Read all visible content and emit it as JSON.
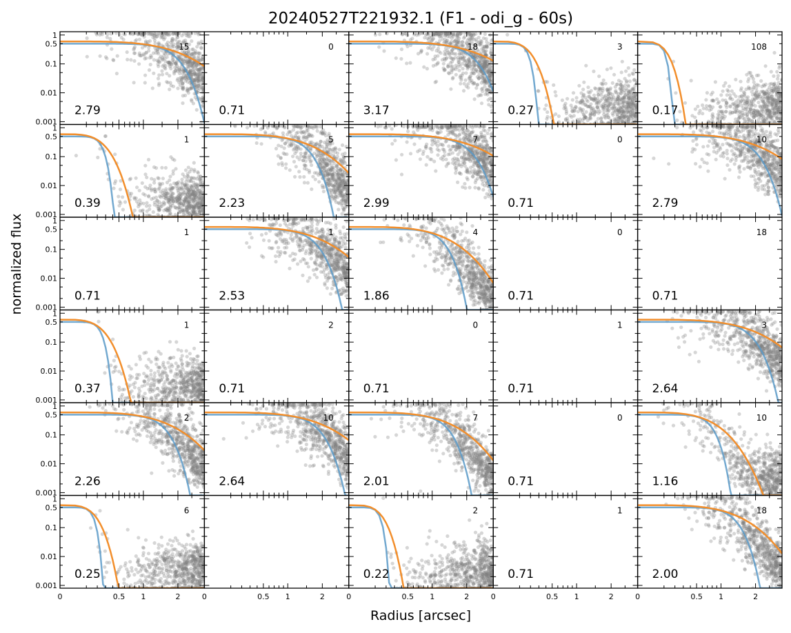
{
  "figure": {
    "title": "20240527T221932.1 (F1 - odi_g - 60s)",
    "xlabel": "Radius [arcsec]",
    "ylabel": "normalized flux"
  },
  "chart_data": {
    "type": "scatter",
    "grid": false,
    "rows": 6,
    "cols": 5,
    "x_scale": "sqrt",
    "xlim": [
      0,
      3
    ],
    "x_ticks": [
      "0",
      "0.5",
      "1",
      "2"
    ],
    "y_scale": "log",
    "ylim": [
      0.0008,
      1.3
    ],
    "y_ticks": [
      "1",
      "0.5",
      "0.1",
      "0.01",
      "0.001"
    ],
    "series_colors": {
      "points": "#808080",
      "profile_fit": "#5b9ac8",
      "model_fit": "#f28e2b"
    },
    "panels": [
      {
        "fwhm": "2.79",
        "count": "15",
        "points": true
      },
      {
        "fwhm": "0.71",
        "count": "0",
        "points": false
      },
      {
        "fwhm": "3.17",
        "count": "18",
        "points": true
      },
      {
        "fwhm": "0.27",
        "count": "3",
        "points": true
      },
      {
        "fwhm": "0.17",
        "count": "108",
        "points": true
      },
      {
        "fwhm": "0.39",
        "count": "1",
        "points": true
      },
      {
        "fwhm": "2.23",
        "count": "5",
        "points": true
      },
      {
        "fwhm": "2.99",
        "count": "7",
        "points": true
      },
      {
        "fwhm": "0.71",
        "count": "0",
        "points": false
      },
      {
        "fwhm": "2.79",
        "count": "10",
        "points": true
      },
      {
        "fwhm": "0.71",
        "count": "1",
        "points": false
      },
      {
        "fwhm": "2.53",
        "count": "1",
        "points": true
      },
      {
        "fwhm": "1.86",
        "count": "4",
        "points": true
      },
      {
        "fwhm": "0.71",
        "count": "0",
        "points": false
      },
      {
        "fwhm": "0.71",
        "count": "18",
        "points": false
      },
      {
        "fwhm": "0.37",
        "count": "1",
        "points": true
      },
      {
        "fwhm": "0.71",
        "count": "2",
        "points": false
      },
      {
        "fwhm": "0.71",
        "count": "0",
        "points": false
      },
      {
        "fwhm": "0.71",
        "count": "1",
        "points": false
      },
      {
        "fwhm": "2.64",
        "count": "3",
        "points": true
      },
      {
        "fwhm": "2.26",
        "count": "2",
        "points": true
      },
      {
        "fwhm": "2.64",
        "count": "10",
        "points": true
      },
      {
        "fwhm": "2.01",
        "count": "7",
        "points": true
      },
      {
        "fwhm": "0.71",
        "count": "0",
        "points": false
      },
      {
        "fwhm": "1.16",
        "count": "10",
        "points": true
      },
      {
        "fwhm": "0.25",
        "count": "6",
        "points": true
      },
      {
        "fwhm": "",
        "count": "",
        "points": false
      },
      {
        "fwhm": "0.22",
        "count": "2",
        "points": true
      },
      {
        "fwhm": "0.71",
        "count": "1",
        "points": false
      },
      {
        "fwhm": "2.00",
        "count": "18",
        "points": true
      }
    ]
  }
}
